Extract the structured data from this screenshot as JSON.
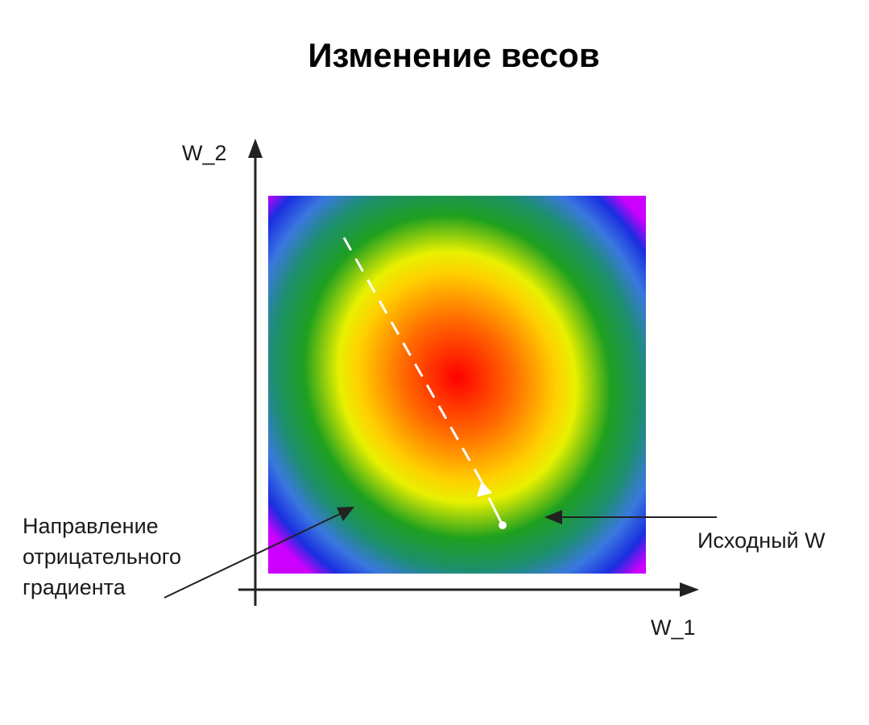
{
  "title": "Изменение весов",
  "axes": {
    "x_label": "W_1",
    "y_label": "W_2"
  },
  "annotations": {
    "initial_weight": "Исходный W",
    "negative_gradient": [
      "Направление",
      "отрицательного",
      "градиента"
    ]
  },
  "colors": {
    "minimum": "#ff0000",
    "ring_orange": "#ff9a00",
    "ring_yellow": "#ffe600",
    "ring_green": "#1fa01f",
    "ring_blue": "#1a2ee0",
    "corner_magenta": "#cc00ff",
    "path": "#ffffff",
    "axis": "#222222"
  }
}
